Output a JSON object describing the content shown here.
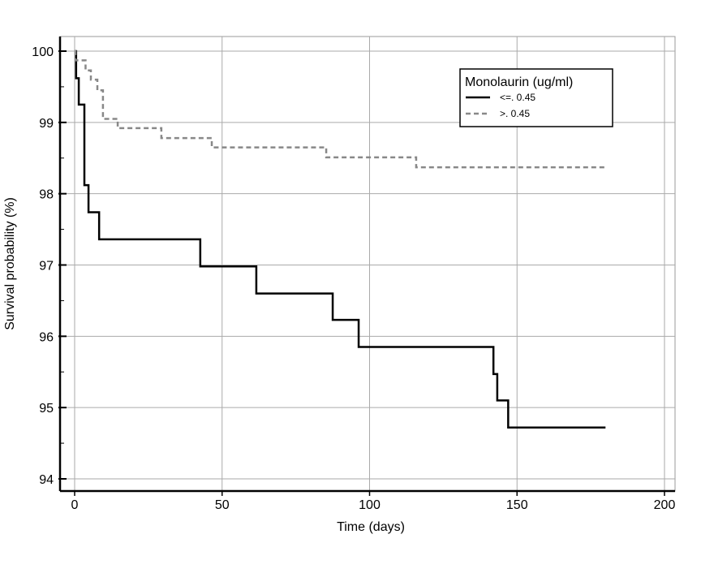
{
  "chart_data": {
    "type": "line",
    "title": "",
    "xlabel": "Time (days)",
    "ylabel": "Survival probability (%)",
    "xlim": [
      0,
      200
    ],
    "ylim": [
      94,
      100
    ],
    "xticks": [
      0,
      50,
      100,
      150,
      200
    ],
    "yticks": [
      94,
      95,
      96,
      97,
      98,
      99,
      100
    ],
    "grid": true,
    "legend": {
      "title": "Monolaurin (ug/ml)",
      "placement": "top-right"
    },
    "series": [
      {
        "name": "<=. 0.45",
        "style": "solid",
        "color": "#000000",
        "steps": [
          [
            0,
            100
          ],
          [
            0.5,
            99.62
          ],
          [
            1.4,
            99.25
          ],
          [
            3.3,
            98.12
          ],
          [
            4.7,
            97.74
          ],
          [
            8.3,
            97.36
          ],
          [
            42.6,
            96.98
          ],
          [
            61.6,
            96.6
          ],
          [
            87.5,
            96.23
          ],
          [
            96.3,
            95.85
          ],
          [
            142,
            95.47
          ],
          [
            143.3,
            95.1
          ],
          [
            147,
            94.72
          ],
          [
            180,
            94.72
          ]
        ]
      },
      {
        "name": ">. 0.45",
        "style": "dashed",
        "color": "#888888",
        "steps": [
          [
            0,
            100
          ],
          [
            0.3,
            99.87
          ],
          [
            3.7,
            99.73
          ],
          [
            5.5,
            99.6
          ],
          [
            7.7,
            99.45
          ],
          [
            9.6,
            99.05
          ],
          [
            14.6,
            98.92
          ],
          [
            29.4,
            98.78
          ],
          [
            46.5,
            98.65
          ],
          [
            85.3,
            98.51
          ],
          [
            115.8,
            98.37
          ],
          [
            180,
            98.37
          ]
        ]
      }
    ]
  }
}
